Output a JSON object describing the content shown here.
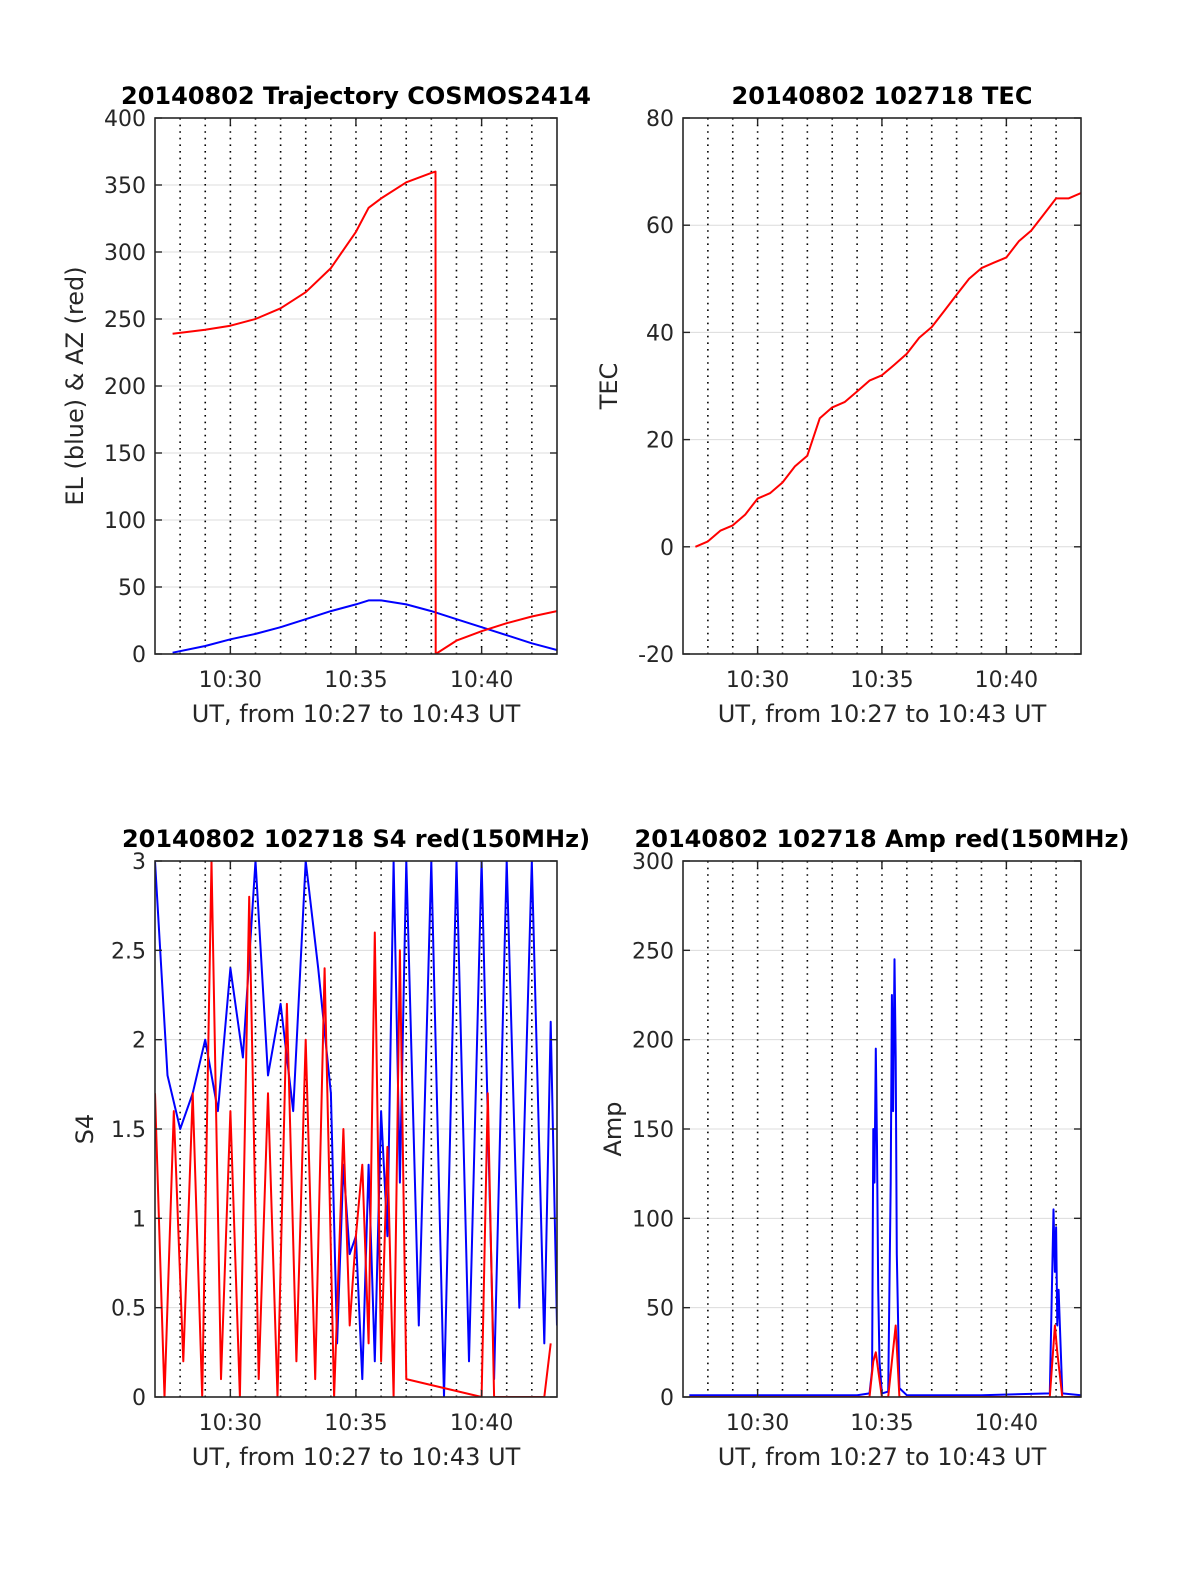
{
  "figure": {
    "background": "#ffffff"
  },
  "colors": {
    "red": "#ff0000",
    "blue": "#0000ff",
    "grid": "#dcdcdc",
    "vgrid": "#000000",
    "axis": "#262626"
  },
  "chart_data": [
    {
      "id": "trajectory",
      "type": "line",
      "title": "20140802 Trajectory COSMOS2414",
      "xlabel": "UT, from 10:27 to 10:43 UT",
      "ylabel": "EL (blue) & AZ (red)",
      "xlim": [
        10.45,
        10.7167
      ],
      "ylim": [
        0,
        400
      ],
      "yticks": [
        0,
        50,
        100,
        150,
        200,
        250,
        300,
        350,
        400
      ],
      "ytick_labels": [
        "0",
        "50",
        "100",
        "150",
        "200",
        "250",
        "300",
        "350",
        "400"
      ],
      "xticks": [
        10.5,
        10.5833,
        10.6667
      ],
      "xtick_labels": [
        "10:30",
        "10:35",
        "10:40"
      ],
      "series": [
        {
          "color": "#0000ff",
          "x": [
            10.4617,
            10.4833,
            10.5,
            10.5167,
            10.5333,
            10.55,
            10.5667,
            10.5833,
            10.5917,
            10.6,
            10.6167,
            10.6333,
            10.65,
            10.6667,
            10.6833,
            10.7,
            10.7167
          ],
          "y": [
            1,
            6,
            11,
            15,
            20,
            26,
            32,
            37,
            40,
            40,
            37,
            32,
            26,
            20,
            14,
            8,
            3
          ]
        },
        {
          "color": "#ff0000",
          "x": [
            10.4617,
            10.4833,
            10.5,
            10.5167,
            10.5333,
            10.55,
            10.5667,
            10.5833,
            10.5917,
            10.6,
            10.6167,
            10.6333,
            10.6361,
            10.6362,
            10.65,
            10.6667,
            10.6833,
            10.7,
            10.7167
          ],
          "y": [
            239,
            242,
            245,
            250,
            258,
            270,
            288,
            315,
            333,
            340,
            352,
            359,
            360,
            0,
            10,
            17,
            23,
            28,
            32
          ]
        }
      ]
    },
    {
      "id": "tec",
      "type": "line",
      "title": "20140802 102718 TEC",
      "xlabel": "UT, from 10:27 to 10:43 UT",
      "ylabel": "TEC",
      "xlim": [
        10.45,
        10.7167
      ],
      "ylim": [
        -20,
        80
      ],
      "yticks": [
        -20,
        0,
        20,
        40,
        60,
        80
      ],
      "ytick_labels": [
        "-20",
        "0",
        "20",
        "40",
        "60",
        "80"
      ],
      "xticks": [
        10.5,
        10.5833,
        10.6667
      ],
      "xtick_labels": [
        "10:30",
        "10:35",
        "10:40"
      ],
      "series": [
        {
          "color": "#ff0000",
          "x": [
            10.4583,
            10.4667,
            10.475,
            10.4833,
            10.4917,
            10.5,
            10.5083,
            10.5167,
            10.525,
            10.5333,
            10.5417,
            10.55,
            10.5583,
            10.5667,
            10.575,
            10.5833,
            10.5917,
            10.6,
            10.6083,
            10.6167,
            10.625,
            10.6333,
            10.6417,
            10.65,
            10.6583,
            10.6667,
            10.675,
            10.6833,
            10.6917,
            10.7,
            10.7083,
            10.7167
          ],
          "y": [
            0,
            1,
            3,
            4,
            6,
            9,
            10,
            12,
            15,
            17,
            24,
            26,
            27,
            29,
            31,
            32,
            34,
            36,
            39,
            41,
            44,
            47,
            50,
            52,
            53,
            54,
            57,
            59,
            62,
            65,
            65,
            66
          ]
        }
      ]
    },
    {
      "id": "s4",
      "type": "line",
      "title": "20140802 102718 S4 red(150MHz)",
      "xlabel": "UT, from 10:27 to 10:43 UT",
      "ylabel": "S4",
      "xlim": [
        10.45,
        10.7167
      ],
      "ylim": [
        0,
        3
      ],
      "yticks": [
        0,
        0.5,
        1,
        1.5,
        2,
        2.5,
        3
      ],
      "ytick_labels": [
        "0",
        "0.5",
        "1",
        "1.5",
        "2",
        "2.5",
        "3"
      ],
      "xticks": [
        10.5,
        10.5833,
        10.6667
      ],
      "xtick_labels": [
        "10:30",
        "10:35",
        "10:40"
      ],
      "series": [
        {
          "color": "#0000ff",
          "x": [
            10.45,
            10.4583,
            10.4667,
            10.475,
            10.4833,
            10.4917,
            10.5,
            10.5083,
            10.5167,
            10.525,
            10.5333,
            10.5417,
            10.55,
            10.5583,
            10.5667,
            10.5708,
            10.575,
            10.5792,
            10.5833,
            10.5875,
            10.5917,
            10.5958,
            10.6,
            10.6042,
            10.6083,
            10.6125,
            10.6167,
            10.625,
            10.6333,
            10.6417,
            10.65,
            10.6583,
            10.6667,
            10.675,
            10.6833,
            10.6917,
            10.7,
            10.7083,
            10.7125,
            10.7167
          ],
          "y": [
            3.0,
            1.8,
            1.5,
            1.7,
            2.0,
            1.6,
            2.4,
            1.9,
            3.0,
            1.8,
            2.2,
            1.6,
            3.0,
            2.4,
            1.7,
            0.3,
            1.3,
            0.8,
            0.9,
            0.1,
            1.3,
            0.2,
            1.6,
            0.9,
            3.0,
            1.2,
            3.0,
            0.4,
            3.0,
            0.0,
            3.0,
            0.2,
            3.0,
            0.1,
            3.0,
            0.5,
            3.0,
            0.3,
            2.1,
            0.4
          ]
        },
        {
          "color": "#ff0000",
          "x": [
            10.45,
            10.4563,
            10.4625,
            10.4688,
            10.475,
            10.4813,
            10.4875,
            10.4938,
            10.5,
            10.5063,
            10.5125,
            10.5188,
            10.525,
            10.5313,
            10.5375,
            10.5438,
            10.55,
            10.5563,
            10.5625,
            10.5688,
            10.575,
            10.5792,
            10.5833,
            10.5875,
            10.5917,
            10.5958,
            10.6,
            10.6042,
            10.6083,
            10.6125,
            10.6167,
            10.6667,
            10.6708,
            10.675,
            10.7083,
            10.7125
          ],
          "y": [
            1.7,
            0.0,
            1.6,
            0.2,
            1.7,
            0.0,
            3.0,
            0.1,
            1.6,
            0.0,
            2.8,
            0.1,
            1.7,
            0.0,
            2.2,
            0.2,
            2.0,
            0.1,
            2.4,
            0.0,
            1.5,
            0.4,
            0.9,
            1.3,
            0.3,
            2.6,
            0.2,
            1.4,
            0.0,
            2.5,
            0.1,
            0.0,
            1.7,
            0.0,
            0.0,
            0.3
          ]
        }
      ]
    },
    {
      "id": "amp",
      "type": "line",
      "title": "20140802 102718 Amp red(150MHz)",
      "xlabel": "UT, from 10:27 to 10:43 UT",
      "ylabel": "Amp",
      "xlim": [
        10.45,
        10.7167
      ],
      "ylim": [
        0,
        300
      ],
      "yticks": [
        0,
        50,
        100,
        150,
        200,
        250,
        300
      ],
      "ytick_labels": [
        "0",
        "50",
        "100",
        "150",
        "200",
        "250",
        "300"
      ],
      "xticks": [
        10.5,
        10.5833,
        10.6667
      ],
      "xtick_labels": [
        "10:30",
        "10:35",
        "10:40"
      ],
      "series": [
        {
          "color": "#0000ff",
          "x": [
            10.4542,
            10.5,
            10.5667,
            10.575,
            10.5767,
            10.5775,
            10.5783,
            10.5792,
            10.58,
            10.5808,
            10.5817,
            10.5833,
            10.5875,
            10.5892,
            10.59,
            10.5908,
            10.5917,
            10.5925,
            10.5933,
            10.595,
            10.6,
            10.65,
            10.6958,
            10.6983,
            10.6992,
            10.7,
            10.7008,
            10.7017,
            10.7042,
            10.7167
          ],
          "y": [
            1,
            1,
            1,
            2,
            15,
            150,
            120,
            195,
            140,
            60,
            20,
            2,
            3,
            120,
            225,
            160,
            245,
            190,
            80,
            5,
            1,
            1,
            2,
            105,
            70,
            95,
            40,
            60,
            2,
            1
          ]
        },
        {
          "color": "#ff0000",
          "x": [
            10.4542,
            10.5,
            10.575,
            10.5775,
            10.5792,
            10.5808,
            10.5833,
            10.5875,
            10.59,
            10.5925,
            10.595,
            10.65,
            10.6958,
            10.6992,
            10.7008,
            10.7042,
            10.7167
          ],
          "y": [
            0,
            0,
            0,
            20,
            25,
            15,
            0,
            0,
            20,
            40,
            0,
            0,
            0,
            40,
            25,
            0,
            0
          ]
        }
      ]
    }
  ]
}
